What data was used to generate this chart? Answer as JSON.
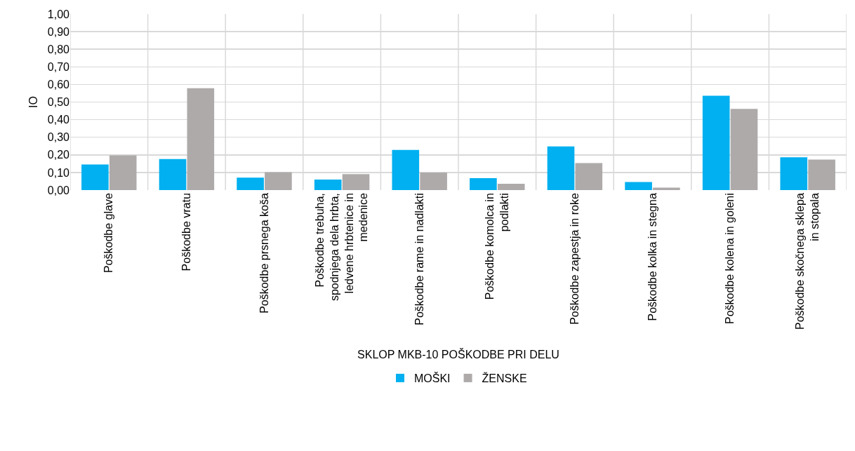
{
  "chart_data": {
    "type": "bar",
    "xlabel": "SKLOP MKB-10 POŠKODBE PRI DELU",
    "ylabel": "IO",
    "categories": [
      "Poškodbe glave",
      "Poškodbe vratu",
      "Poškodbe prsnega koša",
      "Poškodbe trebuha,\nspodnjega dela hrbta,\nledvene hrbtenice in\nmedenice",
      "Poškodbe rame in nadlakti",
      "Poškodbe komolca in\npodlakti",
      "Poškodbe zapestja in roke",
      "Poškodbe kolka in stegna",
      "Poškodbe kolena in goleni",
      "Poškodbe skočnega sklepa\nin stopala"
    ],
    "series": [
      {
        "name": "MOŠKI",
        "color": "#00b0f0",
        "values": [
          0.145,
          0.176,
          0.071,
          0.06,
          0.228,
          0.068,
          0.248,
          0.046,
          0.536,
          0.186
        ]
      },
      {
        "name": "ŽENSKE",
        "color": "#aeaaaa",
        "values": [
          0.197,
          0.579,
          0.102,
          0.091,
          0.1,
          0.036,
          0.153,
          0.014,
          0.461,
          0.173
        ]
      }
    ],
    "ylim": [
      0,
      1
    ],
    "yticks": [
      {
        "value": 0,
        "label": "0,00"
      },
      {
        "value": 0.1,
        "label": "0,10"
      },
      {
        "value": 0.2,
        "label": "0,20"
      },
      {
        "value": 0.3,
        "label": "0,30"
      },
      {
        "value": 0.4,
        "label": "0,40"
      },
      {
        "value": 0.5,
        "label": "0,50"
      },
      {
        "value": 0.6,
        "label": "0,60"
      },
      {
        "value": 0.7,
        "label": "0,70"
      },
      {
        "value": 0.8,
        "label": "0,80"
      },
      {
        "value": 0.9,
        "label": "0,90"
      },
      {
        "value": 1,
        "label": "1,00"
      }
    ],
    "grid": true,
    "legend": "bottom"
  }
}
